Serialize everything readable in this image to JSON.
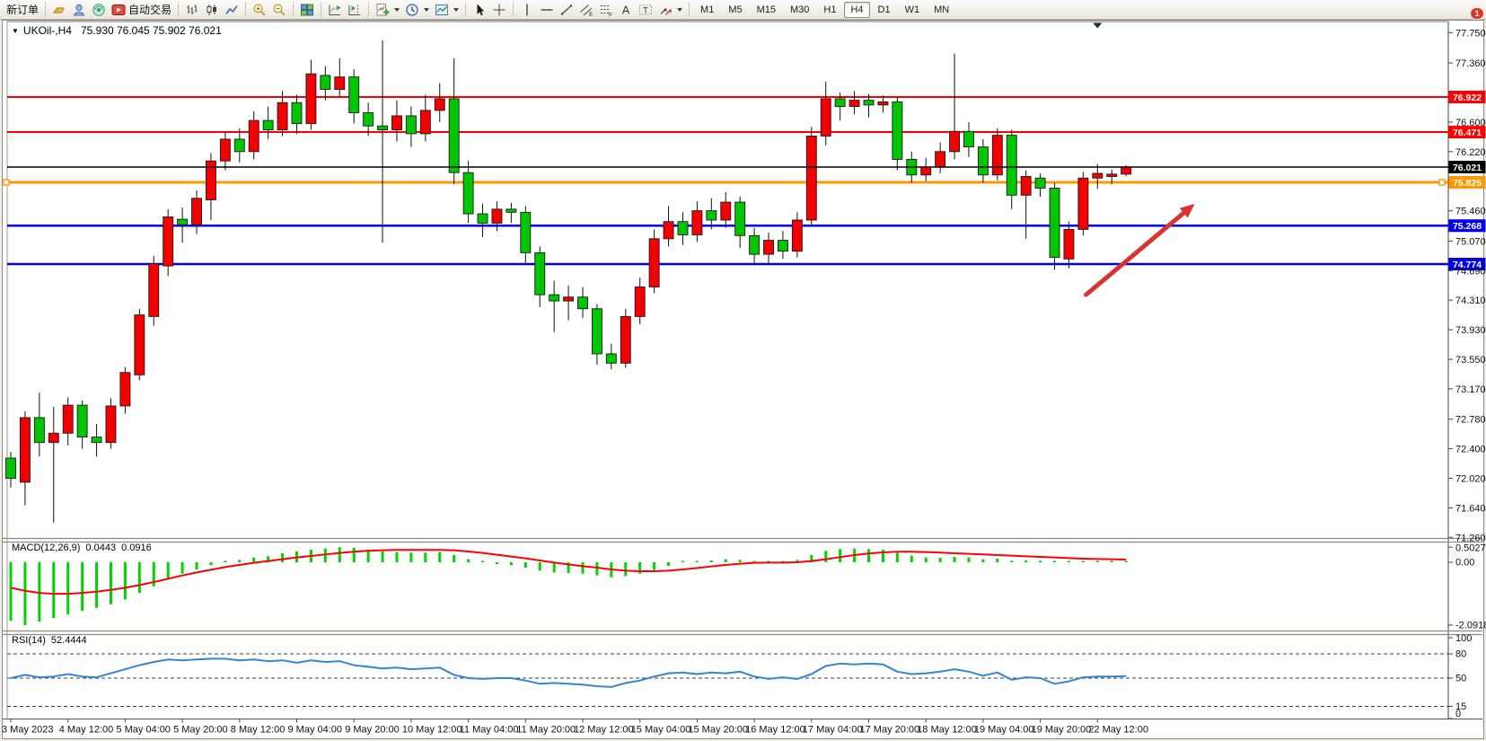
{
  "toolbar": {
    "groups": [
      {
        "items": [
          {
            "icon": null,
            "name": "new-order-button",
            "label": "新订单"
          }
        ]
      },
      {
        "items": [
          {
            "icon": "ingot",
            "name": "market-watch-icon"
          },
          {
            "icon": "profile",
            "name": "profile-icon"
          },
          {
            "icon": "signal",
            "name": "signals-icon"
          },
          {
            "icon": "autotrading",
            "name": "autotrading-button",
            "label": "自动交易"
          }
        ]
      },
      {
        "items": [
          {
            "icon": "bar-chart",
            "name": "bar-chart-icon"
          },
          {
            "icon": "candle-chart",
            "name": "candlestick-chart-icon"
          },
          {
            "icon": "line-chart",
            "name": "line-chart-icon"
          }
        ]
      },
      {
        "items": [
          {
            "icon": "zoom-in",
            "name": "zoom-in-icon"
          },
          {
            "icon": "zoom-out",
            "name": "zoom-out-icon"
          }
        ]
      },
      {
        "items": [
          {
            "icon": "tiles",
            "name": "tile-windows-icon"
          }
        ]
      },
      {
        "items": [
          {
            "icon": "auto-scroll",
            "name": "auto-scroll-icon"
          },
          {
            "icon": "chart-shift",
            "name": "chart-shift-icon"
          }
        ]
      },
      {
        "items": [
          {
            "icon": "indicators",
            "name": "indicators-icon",
            "dropdown": true
          },
          {
            "icon": "periods",
            "name": "periods-icon",
            "dropdown": true
          },
          {
            "icon": "templates",
            "name": "templates-icon",
            "dropdown": true
          }
        ]
      },
      {
        "items": [
          {
            "icon": "cursor",
            "name": "cursor-icon"
          },
          {
            "icon": "crosshair",
            "name": "crosshair-icon"
          }
        ]
      },
      {
        "items": [
          {
            "icon": "vline",
            "name": "vertical-line-icon"
          },
          {
            "icon": "hline",
            "name": "horizontal-line-icon"
          },
          {
            "icon": "trendline",
            "name": "trendline-icon"
          },
          {
            "icon": "channel",
            "name": "equidistant-channel-icon"
          },
          {
            "icon": "fibo",
            "name": "fibonacci-icon"
          },
          {
            "icon": "text",
            "name": "text-icon"
          },
          {
            "icon": "text-label",
            "name": "text-label-icon"
          },
          {
            "icon": "arrows",
            "name": "arrows-tool-icon",
            "dropdown": true
          }
        ]
      }
    ],
    "timeframes": {
      "items": [
        "M1",
        "M5",
        "M15",
        "M30",
        "H1",
        "H4",
        "D1",
        "W1",
        "MN"
      ],
      "active": "H4"
    },
    "right": [
      {
        "icon": "search",
        "name": "search-icon"
      },
      {
        "icon": "chat",
        "name": "chat-icon",
        "badge": "1"
      }
    ]
  },
  "chart": {
    "title": {
      "dropdown_marker": "▼",
      "symbol": "UKOil-,H4",
      "ohlc": "75.930 76.045 75.902 76.021"
    },
    "macd_label": "MACD(12,26,9)",
    "macd_value_main": "0.0443",
    "macd_value_signal": "0.0916",
    "rsi_label": "RSI(14)",
    "rsi_value": "52.4444"
  },
  "chart_data": {
    "type": "candlestick",
    "symbol": "UKOil-",
    "timeframe": "H4",
    "current_bar": {
      "open": 75.93,
      "high": 76.045,
      "low": 75.902,
      "close": 76.021
    },
    "colors": {
      "up": "#f40000",
      "down": "#00c600",
      "wick": "#111111",
      "macd_hist": "#00d400",
      "macd_signal": "#ff0000",
      "rsi_line": "#3585d0",
      "arrow": "#d8332e"
    },
    "price_axis_ticks": [
      "77.750",
      "77.360",
      "76.600",
      "76.220",
      "75.460",
      "75.070",
      "74.690",
      "74.310",
      "73.930",
      "73.550",
      "73.170",
      "72.780",
      "72.400",
      "72.020",
      "71.640",
      "71.260"
    ],
    "hlines": [
      {
        "value": "76.922",
        "price": 76.922,
        "color": "#ff0000",
        "width": 2
      },
      {
        "value": "76.471",
        "price": 76.471,
        "color": "#ff0000",
        "width": 2
      },
      {
        "value": "76.021",
        "price": 76.021,
        "color": "#000000",
        "width": 1.5,
        "current": true
      },
      {
        "value": "75.825",
        "price": 75.825,
        "color": "#ff9800",
        "width": 3,
        "handles": true
      },
      {
        "value": "75.268",
        "price": 75.268,
        "color": "#0000ee",
        "width": 2.5
      },
      {
        "value": "74.774",
        "price": 74.774,
        "color": "#0000ee",
        "width": 2.5
      }
    ],
    "time_labels": [
      "3 May 2023",
      "4 May 12:00",
      "5 May 04:00",
      "5 May 20:00",
      "8 May 12:00",
      "9 May 04:00",
      "9 May 20:00",
      "10 May 12:00",
      "11 May 04:00",
      "11 May 20:00",
      "12 May 12:00",
      "15 May 04:00",
      "15 May 20:00",
      "16 May 12:00",
      "17 May 04:00",
      "17 May 20:00",
      "18 May 12:00",
      "19 May 04:00",
      "19 May 20:00",
      "22 May 12:00"
    ],
    "bars_per_label": 4,
    "candles": [
      [
        72.28,
        72.36,
        71.9,
        72.02
      ],
      [
        71.97,
        72.88,
        71.67,
        72.8
      ],
      [
        72.8,
        73.12,
        72.3,
        72.48
      ],
      [
        72.48,
        72.94,
        71.45,
        72.6
      ],
      [
        72.6,
        73.06,
        72.44,
        72.96
      ],
      [
        72.96,
        73.02,
        72.4,
        72.55
      ],
      [
        72.55,
        72.72,
        72.3,
        72.48
      ],
      [
        72.48,
        73.05,
        72.4,
        72.95
      ],
      [
        72.95,
        73.45,
        72.85,
        73.38
      ],
      [
        73.35,
        74.2,
        73.28,
        74.12
      ],
      [
        74.1,
        74.88,
        73.98,
        74.78
      ],
      [
        74.75,
        75.48,
        74.62,
        75.38
      ],
      [
        75.35,
        75.5,
        75.05,
        75.28
      ],
      [
        75.28,
        75.72,
        75.16,
        75.62
      ],
      [
        75.6,
        76.2,
        75.34,
        76.1
      ],
      [
        76.1,
        76.48,
        75.98,
        76.38
      ],
      [
        76.38,
        76.52,
        76.08,
        76.22
      ],
      [
        76.22,
        76.74,
        76.12,
        76.62
      ],
      [
        76.62,
        76.8,
        76.38,
        76.5
      ],
      [
        76.5,
        77.0,
        76.42,
        76.85
      ],
      [
        76.85,
        76.95,
        76.45,
        76.58
      ],
      [
        76.58,
        77.4,
        76.5,
        77.22
      ],
      [
        77.2,
        77.32,
        76.88,
        77.02
      ],
      [
        77.02,
        77.42,
        76.92,
        77.18
      ],
      [
        77.18,
        77.28,
        76.58,
        76.72
      ],
      [
        76.72,
        76.85,
        76.42,
        76.55
      ],
      [
        76.55,
        77.65,
        75.05,
        76.5
      ],
      [
        76.5,
        76.88,
        76.35,
        76.68
      ],
      [
        76.68,
        76.8,
        76.28,
        76.45
      ],
      [
        76.45,
        76.95,
        76.35,
        76.75
      ],
      [
        76.75,
        77.1,
        76.6,
        76.9
      ],
      [
        76.9,
        77.42,
        75.8,
        75.95
      ],
      [
        75.95,
        76.1,
        75.3,
        75.42
      ],
      [
        75.42,
        75.55,
        75.12,
        75.3
      ],
      [
        75.3,
        75.58,
        75.2,
        75.48
      ],
      [
        75.48,
        75.56,
        75.3,
        75.44
      ],
      [
        75.44,
        75.52,
        74.78,
        74.92
      ],
      [
        74.92,
        75.0,
        74.22,
        74.38
      ],
      [
        74.38,
        74.56,
        73.9,
        74.3
      ],
      [
        74.3,
        74.5,
        74.05,
        74.35
      ],
      [
        74.35,
        74.48,
        74.08,
        74.2
      ],
      [
        74.2,
        74.26,
        73.48,
        73.62
      ],
      [
        73.62,
        73.75,
        73.42,
        73.5
      ],
      [
        73.5,
        74.2,
        73.44,
        74.1
      ],
      [
        74.1,
        74.6,
        74.0,
        74.48
      ],
      [
        74.48,
        75.22,
        74.4,
        75.1
      ],
      [
        75.1,
        75.52,
        75.0,
        75.32
      ],
      [
        75.32,
        75.44,
        75.02,
        75.15
      ],
      [
        75.15,
        75.58,
        75.06,
        75.46
      ],
      [
        75.46,
        75.62,
        75.22,
        75.34
      ],
      [
        75.34,
        75.7,
        75.24,
        75.57
      ],
      [
        75.57,
        75.64,
        74.98,
        75.14
      ],
      [
        75.14,
        75.24,
        74.76,
        74.9
      ],
      [
        74.9,
        75.18,
        74.78,
        75.08
      ],
      [
        75.08,
        75.2,
        74.84,
        74.94
      ],
      [
        74.94,
        75.44,
        74.86,
        75.34
      ],
      [
        75.34,
        76.54,
        75.26,
        76.42
      ],
      [
        76.42,
        77.12,
        76.3,
        76.9
      ],
      [
        76.9,
        76.98,
        76.62,
        76.8
      ],
      [
        76.8,
        77.0,
        76.7,
        76.88
      ],
      [
        76.88,
        76.96,
        76.66,
        76.82
      ],
      [
        76.82,
        76.94,
        76.72,
        76.86
      ],
      [
        76.86,
        76.92,
        75.98,
        76.12
      ],
      [
        76.12,
        76.22,
        75.82,
        75.92
      ],
      [
        75.92,
        76.14,
        75.84,
        76.02
      ],
      [
        76.02,
        76.34,
        75.94,
        76.22
      ],
      [
        76.22,
        77.48,
        76.12,
        76.48
      ],
      [
        76.48,
        76.6,
        76.15,
        76.28
      ],
      [
        76.28,
        76.38,
        75.82,
        75.92
      ],
      [
        75.92,
        76.52,
        75.85,
        76.43
      ],
      [
        76.43,
        76.5,
        75.48,
        75.66
      ],
      [
        75.66,
        75.98,
        75.1,
        75.9
      ],
      [
        75.88,
        75.94,
        75.64,
        75.75
      ],
      [
        75.75,
        75.82,
        74.7,
        74.86
      ],
      [
        74.84,
        75.32,
        74.72,
        75.22
      ],
      [
        75.22,
        75.96,
        75.14,
        75.88
      ],
      [
        75.88,
        76.06,
        75.74,
        75.94
      ],
      [
        75.9,
        75.99,
        75.8,
        75.93
      ],
      [
        75.93,
        76.045,
        75.902,
        76.021
      ]
    ],
    "macd": {
      "name": "MACD(12,26,9)",
      "axis_labels": [
        "0.5027",
        "0.00",
        "-2.0918"
      ],
      "axis_values": [
        0.5027,
        0.0,
        -2.0918
      ],
      "histogram": [
        -1.95,
        -2.09,
        -1.98,
        -1.86,
        -1.74,
        -1.62,
        -1.52,
        -1.4,
        -1.24,
        -1.02,
        -0.8,
        -0.56,
        -0.38,
        -0.24,
        -0.1,
        0.02,
        0.08,
        0.16,
        0.2,
        0.3,
        0.36,
        0.42,
        0.46,
        0.5,
        0.48,
        0.42,
        0.36,
        0.34,
        0.32,
        0.32,
        0.34,
        0.24,
        0.1,
        0.0,
        -0.06,
        -0.1,
        -0.18,
        -0.28,
        -0.34,
        -0.36,
        -0.38,
        -0.44,
        -0.5,
        -0.46,
        -0.38,
        -0.26,
        -0.12,
        -0.04,
        0.02,
        0.06,
        0.1,
        0.08,
        0.02,
        -0.02,
        0.0,
        0.08,
        0.24,
        0.38,
        0.44,
        0.45,
        0.44,
        0.42,
        0.32,
        0.22,
        0.16,
        0.15,
        0.18,
        0.16,
        0.1,
        0.12,
        0.05,
        0.06,
        0.05,
        -0.02,
        -0.01,
        0.03,
        0.05,
        0.05,
        0.0443
      ],
      "signal": [
        -0.85,
        -0.95,
        -1.02,
        -1.05,
        -1.05,
        -1.02,
        -0.98,
        -0.92,
        -0.85,
        -0.76,
        -0.66,
        -0.55,
        -0.44,
        -0.34,
        -0.25,
        -0.16,
        -0.09,
        -0.02,
        0.04,
        0.1,
        0.16,
        0.21,
        0.26,
        0.31,
        0.35,
        0.38,
        0.4,
        0.41,
        0.41,
        0.41,
        0.41,
        0.4,
        0.36,
        0.31,
        0.25,
        0.19,
        0.13,
        0.06,
        -0.01,
        -0.07,
        -0.13,
        -0.18,
        -0.24,
        -0.28,
        -0.3,
        -0.3,
        -0.28,
        -0.24,
        -0.19,
        -0.14,
        -0.09,
        -0.05,
        -0.02,
        -0.01,
        -0.01,
        0.0,
        0.04,
        0.1,
        0.17,
        0.24,
        0.29,
        0.33,
        0.35,
        0.35,
        0.34,
        0.32,
        0.3,
        0.28,
        0.26,
        0.24,
        0.22,
        0.2,
        0.18,
        0.16,
        0.14,
        0.12,
        0.11,
        0.1,
        0.0916
      ]
    },
    "rsi": {
      "name": "RSI(14)",
      "levels": [
        "100",
        "80",
        "50",
        "15",
        "0"
      ],
      "level_values": [
        100,
        80,
        50,
        15,
        0
      ],
      "dashed_levels": [
        80,
        50,
        15
      ],
      "series": [
        50,
        54,
        51,
        52,
        55,
        52,
        51,
        56,
        61,
        66,
        70,
        73,
        72,
        73,
        74,
        74,
        72,
        73,
        71,
        72,
        69,
        72,
        70,
        71,
        66,
        64,
        62,
        63,
        61,
        62,
        63,
        54,
        50,
        49,
        50,
        50,
        47,
        43,
        44,
        43,
        42,
        40,
        39,
        44,
        47,
        52,
        56,
        57,
        55,
        57,
        56,
        58,
        52,
        49,
        51,
        49,
        55,
        65,
        68,
        67,
        68,
        67,
        58,
        55,
        56,
        58,
        61,
        58,
        53,
        57,
        48,
        51,
        50,
        43,
        46,
        51,
        52,
        52,
        52.4444
      ]
    },
    "arrow_annotation": {
      "from_bar": 75.2,
      "from_price": 74.38,
      "to_bar": 82.8,
      "to_price": 75.55
    },
    "top_marker_bar": 76
  }
}
